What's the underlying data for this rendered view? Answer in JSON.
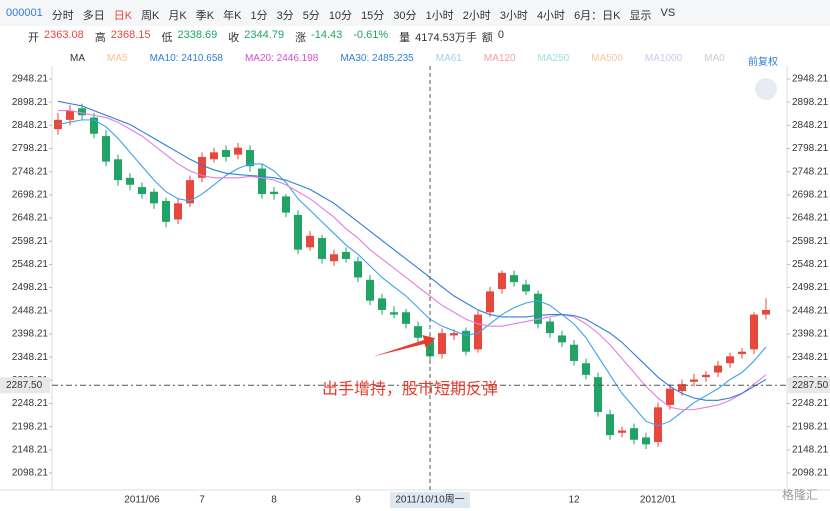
{
  "toolbar": {
    "items": [
      "000001",
      "分时",
      "多日",
      "日K",
      "周K",
      "月K",
      "季K",
      "年K",
      "1分",
      "3分",
      "5分",
      "10分",
      "15分",
      "30分",
      "1小时",
      "2小时",
      "3小时",
      "4小时",
      "6月：日K",
      "显示",
      "VS"
    ]
  },
  "quote": {
    "items": [
      "开",
      "2363.08",
      "高",
      "2368.15",
      "低",
      "2338.69",
      "收",
      "2344.79",
      "涨",
      "-14.43",
      "-0.61%",
      "量",
      "4174.53万手",
      "额",
      "0"
    ]
  },
  "ma_legend": {
    "items": [
      "MA",
      "MA5",
      "MA10: 2410.658",
      "MA20: 2446.198",
      "MA30: 2485.235",
      "MA61",
      "MA120",
      "MA250",
      "MA500",
      "MA1000",
      "MA0"
    ],
    "adjust": "前复权"
  },
  "chart_data": {
    "type": "candlestick",
    "categories": [
      null,
      null,
      null,
      null,
      null,
      null,
      null,
      "2011/06",
      null,
      null,
      null,
      null,
      "7",
      null,
      null,
      null,
      null,
      null,
      "8",
      null,
      null,
      null,
      null,
      null,
      null,
      "9",
      null,
      null,
      null,
      null,
      null,
      null,
      null,
      null,
      null,
      null,
      null,
      null,
      null,
      null,
      null,
      null,
      null,
      "12",
      null,
      null,
      null,
      null,
      null,
      null,
      "2012/01",
      null,
      null,
      null,
      null,
      null,
      null,
      null,
      null,
      null
    ],
    "open": [
      2840,
      2860,
      2885,
      2865,
      2825,
      2775,
      2735,
      2715,
      2705,
      2685,
      2645,
      2680,
      2735,
      2775,
      2795,
      2785,
      2795,
      2755,
      2705,
      2695,
      2655,
      2585,
      2605,
      2555,
      2575,
      2555,
      2515,
      2475,
      2445,
      2445,
      2415,
      2385,
      2355,
      2395,
      2405,
      2365,
      2445,
      2495,
      2525,
      2505,
      2485,
      2425,
      2395,
      2375,
      2335,
      2305,
      2225,
      2185,
      2195,
      2175,
      2165,
      2245,
      2275,
      2295,
      2305,
      2315,
      2335,
      2355,
      2365,
      2440
    ],
    "high": [
      2875,
      2892,
      2895,
      2875,
      2838,
      2785,
      2745,
      2725,
      2712,
      2692,
      2690,
      2740,
      2790,
      2800,
      2805,
      2810,
      2805,
      2765,
      2715,
      2700,
      2665,
      2620,
      2612,
      2580,
      2585,
      2565,
      2525,
      2485,
      2458,
      2452,
      2425,
      2395,
      2410,
      2408,
      2412,
      2448,
      2500,
      2535,
      2535,
      2515,
      2492,
      2432,
      2405,
      2385,
      2345,
      2315,
      2235,
      2198,
      2205,
      2185,
      2250,
      2290,
      2300,
      2312,
      2318,
      2340,
      2358,
      2368,
      2445,
      2475
    ],
    "low": [
      2828,
      2848,
      2860,
      2820,
      2760,
      2718,
      2708,
      2690,
      2668,
      2628,
      2635,
      2672,
      2725,
      2768,
      2770,
      2775,
      2748,
      2690,
      2688,
      2650,
      2570,
      2578,
      2550,
      2545,
      2552,
      2510,
      2460,
      2440,
      2432,
      2410,
      2380,
      2340,
      2345,
      2385,
      2352,
      2358,
      2435,
      2485,
      2500,
      2482,
      2410,
      2390,
      2370,
      2330,
      2300,
      2220,
      2170,
      2175,
      2160,
      2150,
      2155,
      2235,
      2265,
      2285,
      2295,
      2305,
      2325,
      2345,
      2355,
      2430
    ],
    "close": [
      2860,
      2880,
      2870,
      2830,
      2770,
      2730,
      2720,
      2700,
      2680,
      2640,
      2680,
      2730,
      2780,
      2790,
      2780,
      2800,
      2760,
      2700,
      2700,
      2660,
      2580,
      2610,
      2560,
      2570,
      2560,
      2520,
      2470,
      2450,
      2440,
      2420,
      2390,
      2350,
      2400,
      2400,
      2360,
      2440,
      2490,
      2530,
      2510,
      2490,
      2420,
      2400,
      2380,
      2340,
      2310,
      2230,
      2180,
      2190,
      2170,
      2160,
      2240,
      2280,
      2290,
      2300,
      2310,
      2330,
      2350,
      2360,
      2440,
      2450
    ],
    "up_color": "#e8483b",
    "down_color": "#21a366",
    "series": [
      {
        "name": "MA10",
        "color": "#3aa3ee",
        "values": [
          2850,
          2855,
          2860,
          2860,
          2845,
          2820,
          2790,
          2760,
          2730,
          2705,
          2690,
          2685,
          2700,
          2720,
          2740,
          2755,
          2765,
          2765,
          2750,
          2725,
          2690,
          2665,
          2640,
          2615,
          2590,
          2570,
          2545,
          2520,
          2500,
          2480,
          2455,
          2430,
          2415,
          2405,
          2395,
          2400,
          2420,
          2440,
          2455,
          2465,
          2470,
          2460,
          2440,
          2420,
          2390,
          2350,
          2310,
          2270,
          2240,
          2210,
          2200,
          2210,
          2230,
          2250,
          2265,
          2280,
          2300,
          2315,
          2340,
          2370
        ]
      },
      {
        "name": "MA20",
        "color": "#e47ee0",
        "values": [
          2880,
          2880,
          2875,
          2870,
          2865,
          2855,
          2840,
          2825,
          2805,
          2785,
          2765,
          2750,
          2740,
          2735,
          2735,
          2735,
          2738,
          2735,
          2730,
          2720,
          2705,
          2690,
          2670,
          2650,
          2625,
          2605,
          2580,
          2560,
          2540,
          2520,
          2500,
          2480,
          2460,
          2445,
          2430,
          2420,
          2415,
          2415,
          2420,
          2425,
          2430,
          2435,
          2440,
          2435,
          2420,
          2400,
          2375,
          2345,
          2315,
          2285,
          2260,
          2240,
          2235,
          2235,
          2240,
          2245,
          2255,
          2270,
          2290,
          2310
        ]
      },
      {
        "name": "MA30",
        "color": "#2e7fd6",
        "values": [
          2900,
          2895,
          2890,
          2880,
          2870,
          2860,
          2850,
          2835,
          2820,
          2805,
          2790,
          2775,
          2762,
          2752,
          2745,
          2742,
          2740,
          2738,
          2735,
          2730,
          2720,
          2710,
          2695,
          2680,
          2660,
          2640,
          2620,
          2600,
          2580,
          2560,
          2540,
          2520,
          2500,
          2480,
          2465,
          2450,
          2440,
          2435,
          2435,
          2435,
          2438,
          2440,
          2440,
          2438,
          2430,
          2415,
          2400,
          2380,
          2355,
          2330,
          2305,
          2285,
          2270,
          2260,
          2255,
          2255,
          2260,
          2270,
          2285,
          2300
        ]
      }
    ],
    "ylim": [
      2061.6,
      2976.2
    ],
    "yticks": [
      2098.21,
      2148.21,
      2198.21,
      2248.21,
      2298.21,
      2348.21,
      2398.21,
      2448.21,
      2498.21,
      2548.21,
      2598.21,
      2648.21,
      2698.21,
      2748.21,
      2798.21,
      2848.21,
      2898.21,
      2948.21
    ],
    "crosshair": {
      "x": {
        "value": 31,
        "label": "2011/10/10周一"
      },
      "y": {
        "value": 2287.5,
        "label": "2287.50"
      }
    },
    "annotation": "出手增持，股市短期反弹",
    "watermark": "格隆汇"
  }
}
